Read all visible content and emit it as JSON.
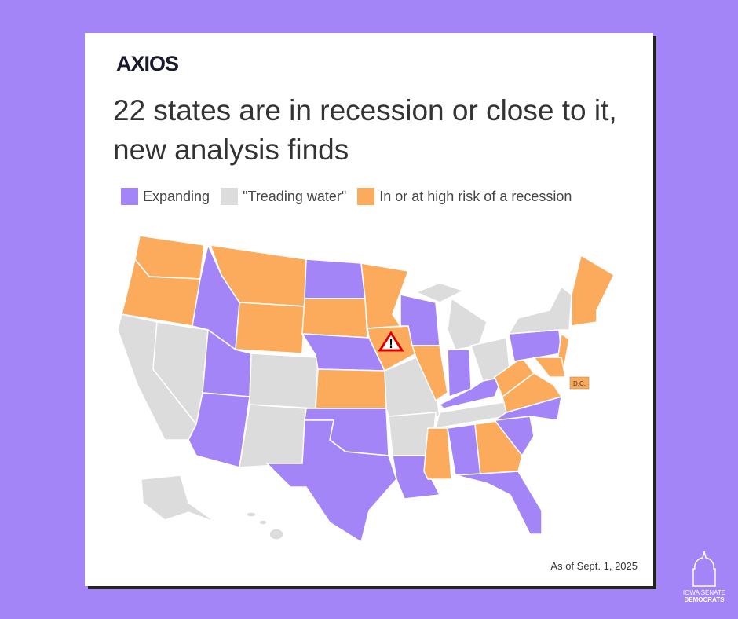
{
  "header": {
    "logo": "AXIOS",
    "title": "22 states are in recession or close to it, new analysis finds"
  },
  "legend": [
    {
      "label": "Expanding",
      "color": "#a385f8"
    },
    {
      "label": "\"Treading water\"",
      "color": "#dcdcdc"
    },
    {
      "label": "In or at high risk of a recession",
      "color": "#fcab5d"
    }
  ],
  "map": {
    "annotation": "D.C."
  },
  "footnote": "As of Sept. 1, 2025",
  "badge": {
    "line1": "IOWA SENATE",
    "line2": "DEMOCRATS"
  }
}
